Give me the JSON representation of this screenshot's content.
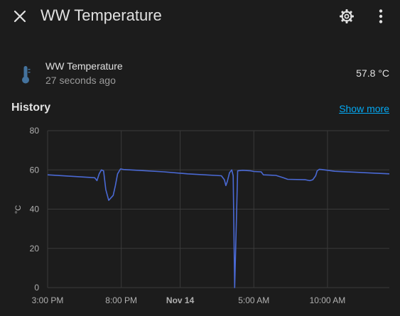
{
  "header": {
    "title": "WW Temperature",
    "close_icon": "close-icon",
    "settings_icon": "gear-icon",
    "more_icon": "dots-vertical-icon"
  },
  "entity": {
    "name": "WW Temperature",
    "last_changed": "27 seconds ago",
    "state": "57.8 °C",
    "icon": "thermometer-icon",
    "icon_color": "#44739e"
  },
  "history": {
    "title": "History",
    "show_more": "Show more"
  },
  "colors": {
    "background": "#1c1c1c",
    "line": "#4a69d4",
    "link": "#03a9f4",
    "grid": "#3a3a3a"
  },
  "chart_data": {
    "type": "line",
    "ylabel": "°C",
    "ylim": [
      0,
      80
    ],
    "y_ticks": [
      {
        "value": 0,
        "label": "0"
      },
      {
        "value": 20,
        "label": "20"
      },
      {
        "value": 40,
        "label": "40"
      },
      {
        "value": 60,
        "label": "60"
      },
      {
        "value": 80,
        "label": "80"
      }
    ],
    "xlim": [
      15,
      38.2
    ],
    "x_ticks": [
      {
        "value": 15,
        "label": "3:00 PM",
        "bold": false
      },
      {
        "value": 20,
        "label": "8:00 PM",
        "bold": false
      },
      {
        "value": 24,
        "label": "Nov 14",
        "bold": true
      },
      {
        "value": 29,
        "label": "5:00 AM",
        "bold": false
      },
      {
        "value": 34,
        "label": "10:00 AM",
        "bold": false
      }
    ],
    "grid_x": [
      15,
      20,
      24,
      29,
      34
    ],
    "grid": true,
    "series": [
      {
        "x": [
          15,
          18.2,
          18.35,
          18.5,
          18.65,
          18.8,
          18.95,
          19.15,
          19.45,
          19.6,
          19.75,
          19.95,
          20.15,
          22.9,
          24.5,
          26.8,
          27.0,
          27.1,
          27.2,
          27.35,
          27.5,
          27.6,
          27.7,
          27.9,
          28.25,
          28.8,
          29.0,
          29.5,
          29.65,
          30.5,
          31.0,
          31.3,
          32.5,
          32.8,
          33.0,
          33.2,
          33.3,
          33.45,
          33.6,
          34.5,
          38.2
        ],
        "y": [
          57.5,
          56.0,
          54.5,
          58.0,
          60.0,
          59.5,
          50.0,
          44.5,
          47.0,
          52.0,
          58.0,
          60.5,
          60.2,
          59.0,
          58.0,
          57.0,
          55.0,
          52.0,
          54.0,
          58.5,
          60.0,
          57.0,
          0.0,
          59.5,
          59.8,
          59.5,
          59.2,
          59.0,
          57.5,
          57.2,
          56.0,
          55.2,
          55.0,
          54.5,
          55.0,
          57.0,
          59.5,
          60.3,
          60.2,
          59.3,
          58.0
        ]
      }
    ]
  }
}
